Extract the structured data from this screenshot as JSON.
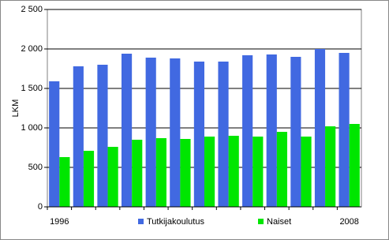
{
  "chart_data": {
    "type": "bar",
    "y_label": "LKM",
    "categories": [
      "1996",
      null,
      null,
      null,
      null,
      null,
      null,
      null,
      null,
      null,
      null,
      null,
      "2008"
    ],
    "series": [
      {
        "name": "Tutkijakoulutus",
        "color": "#4169e1",
        "values": [
          1590,
          1780,
          1800,
          1940,
          1890,
          1880,
          1840,
          1840,
          1920,
          1930,
          1900,
          2000,
          1950
        ]
      },
      {
        "name": "Naiset",
        "color": "#00e600",
        "values": [
          630,
          710,
          760,
          850,
          870,
          860,
          890,
          900,
          890,
          950,
          890,
          1020,
          1050
        ]
      }
    ],
    "ylim": [
      0,
      2500
    ],
    "yticks": [
      0,
      500,
      {
        "value": 1000,
        "label": "1 000"
      },
      {
        "value": 1500,
        "label": "1 500"
      },
      {
        "value": 2000,
        "label": "2 000"
      },
      {
        "value": 2500,
        "label": "2 500"
      }
    ],
    "grid": true,
    "legend": "bottom"
  }
}
